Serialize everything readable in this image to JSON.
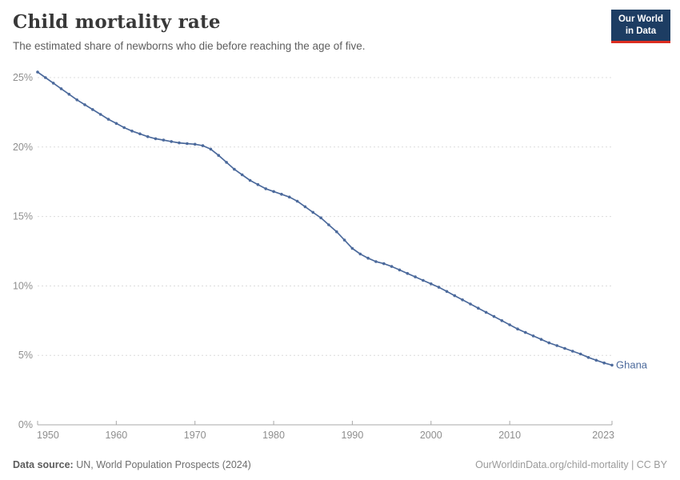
{
  "header": {
    "title": "Child mortality rate",
    "subtitle": "The estimated share of newborns who die before reaching the age of five.",
    "logo": {
      "line1": "Our World",
      "line2": "in Data",
      "bg_color": "#1d3d63",
      "accent_color": "#dc2d20"
    }
  },
  "footer": {
    "source_label": "Data source:",
    "source_value": "UN, World Population Prospects (2024)",
    "attribution": "OurWorldinData.org/child-mortality | CC BY"
  },
  "colors": {
    "series_blue": "#4c6a9c",
    "gridline": "#dcdcdc",
    "axis": "#a9a9a9",
    "tick_label": "#8e8e8e",
    "title": "#383838",
    "subtitle": "#5e5e5e"
  },
  "chart_data": {
    "type": "line",
    "title": "Child mortality rate",
    "xlabel": "",
    "ylabel": "",
    "xlim": [
      1950,
      2023
    ],
    "ylim": [
      0,
      25
    ],
    "grid": "horizontal-dashed",
    "legend": "end-of-line-label",
    "x_ticks": [
      1950,
      1960,
      1970,
      1980,
      1990,
      2000,
      2010,
      2023
    ],
    "x_tick_labels": [
      "1950",
      "1960",
      "1970",
      "1980",
      "1990",
      "2000",
      "2010",
      "2023"
    ],
    "y_ticks": [
      0,
      5,
      10,
      15,
      20,
      25
    ],
    "y_tick_labels": [
      "0%",
      "5%",
      "10%",
      "15%",
      "20%",
      "25%"
    ],
    "years": [
      1950,
      1951,
      1952,
      1953,
      1954,
      1955,
      1956,
      1957,
      1958,
      1959,
      1960,
      1961,
      1962,
      1963,
      1964,
      1965,
      1966,
      1967,
      1968,
      1969,
      1970,
      1971,
      1972,
      1973,
      1974,
      1975,
      1976,
      1977,
      1978,
      1979,
      1980,
      1981,
      1982,
      1983,
      1984,
      1985,
      1986,
      1987,
      1988,
      1989,
      1990,
      1991,
      1992,
      1993,
      1994,
      1995,
      1996,
      1997,
      1998,
      1999,
      2000,
      2001,
      2002,
      2003,
      2004,
      2005,
      2006,
      2007,
      2008,
      2009,
      2010,
      2011,
      2012,
      2013,
      2014,
      2015,
      2016,
      2017,
      2018,
      2019,
      2020,
      2021,
      2022,
      2023
    ],
    "series": [
      {
        "name": "Ghana",
        "color": "#4c6a9c",
        "unit": "%",
        "values": [
          25.4,
          25.0,
          24.6,
          24.2,
          23.8,
          23.4,
          23.05,
          22.7,
          22.35,
          22.0,
          21.7,
          21.4,
          21.15,
          20.95,
          20.75,
          20.6,
          20.5,
          20.4,
          20.3,
          20.25,
          20.2,
          20.1,
          19.85,
          19.4,
          18.9,
          18.4,
          18.0,
          17.6,
          17.3,
          17.0,
          16.8,
          16.6,
          16.4,
          16.1,
          15.7,
          15.3,
          14.9,
          14.4,
          13.9,
          13.3,
          12.7,
          12.3,
          12.0,
          11.75,
          11.6,
          11.4,
          11.15,
          10.9,
          10.65,
          10.4,
          10.15,
          9.9,
          9.6,
          9.3,
          9.0,
          8.7,
          8.4,
          8.1,
          7.8,
          7.5,
          7.2,
          6.9,
          6.65,
          6.4,
          6.15,
          5.9,
          5.7,
          5.5,
          5.3,
          5.1,
          4.85,
          4.65,
          4.45,
          4.3
        ]
      }
    ]
  }
}
